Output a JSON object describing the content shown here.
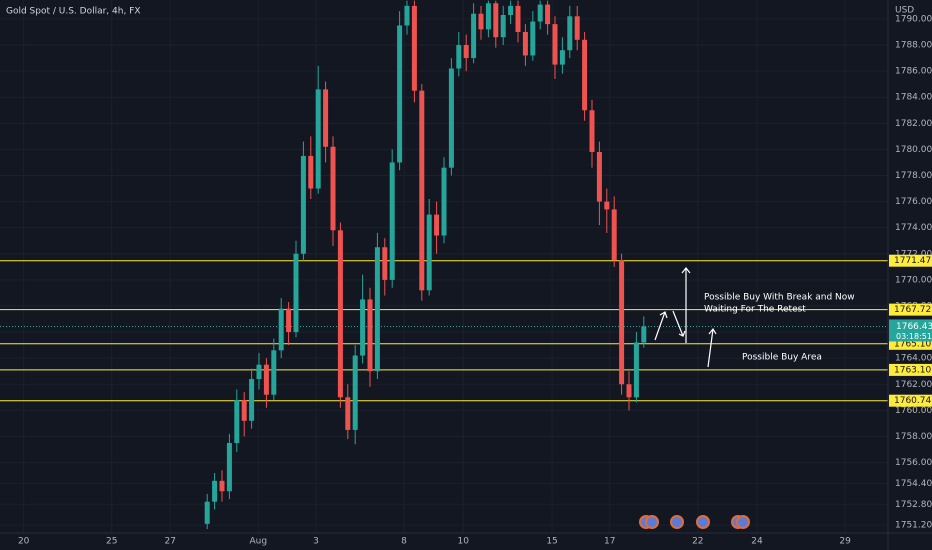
{
  "chart_data": {
    "type": "candlestick",
    "title": "Gold Spot / U.S. Dollar, 4h, FX",
    "currency": "USD",
    "up_color": "#26a69a",
    "down_color": "#ef5350",
    "open": [
      1751.3,
      1753.0,
      1754.6,
      1753.8,
      1757.5,
      1760.8,
      1759.2,
      1762.4,
      1763.5,
      1761.2,
      1764.6,
      1767.8,
      1766.0,
      1772.0,
      1779.5,
      1777.0,
      1784.6,
      1780.2,
      1773.8,
      1761.0,
      1758.5,
      1764.2,
      1768.5,
      1763.0,
      1772.5,
      1770.0,
      1779.0,
      1789.5,
      1791.0,
      1784.5,
      1769.2,
      1775.0,
      1773.4,
      1778.6,
      1786.2,
      1788.0,
      1787.0,
      1790.4,
      1789.2,
      1791.2,
      1788.6,
      1790.3,
      1791.0,
      1789.0,
      1787.2,
      1789.8,
      1791.1,
      1789.6,
      1786.5,
      1787.6,
      1790.2,
      1788.4,
      1783.0,
      1779.8,
      1776.0,
      1775.4,
      1771.5,
      1762.0,
      1761.0,
      1765.2
    ],
    "high": [
      1753.6,
      1755.2,
      1755.4,
      1758.2,
      1761.6,
      1761.4,
      1763.2,
      1764.4,
      1764.0,
      1765.5,
      1768.6,
      1768.3,
      1773.0,
      1780.6,
      1781.0,
      1786.4,
      1785.2,
      1781.0,
      1774.4,
      1762.0,
      1765.0,
      1770.4,
      1769.4,
      1773.6,
      1773.2,
      1780.0,
      1790.6,
      1791.4,
      1791.4,
      1785.0,
      1776.2,
      1776.0,
      1779.4,
      1787.0,
      1789.0,
      1788.8,
      1791.2,
      1791.0,
      1791.4,
      1791.4,
      1791.0,
      1791.4,
      1791.4,
      1789.6,
      1790.6,
      1791.4,
      1791.4,
      1790.2,
      1788.6,
      1791.0,
      1791.0,
      1789.0,
      1783.8,
      1780.6,
      1777.0,
      1776.4,
      1772.0,
      1763.0,
      1766.0,
      1767.2
    ],
    "low": [
      1750.9,
      1752.4,
      1753.0,
      1753.2,
      1756.8,
      1758.0,
      1758.6,
      1761.6,
      1760.2,
      1760.8,
      1764.0,
      1765.0,
      1765.6,
      1771.4,
      1776.2,
      1776.6,
      1779.0,
      1772.6,
      1760.2,
      1757.8,
      1757.4,
      1763.6,
      1761.8,
      1762.4,
      1768.8,
      1769.4,
      1778.4,
      1788.8,
      1783.6,
      1768.4,
      1768.8,
      1772.0,
      1772.8,
      1778.0,
      1785.6,
      1786.0,
      1786.6,
      1788.4,
      1788.6,
      1787.8,
      1788.0,
      1789.6,
      1788.2,
      1786.4,
      1786.8,
      1789.2,
      1788.8,
      1785.4,
      1785.8,
      1787.0,
      1787.6,
      1782.2,
      1778.6,
      1774.2,
      1773.6,
      1771.0,
      1761.2,
      1760.0,
      1760.6,
      1764.8
    ],
    "close": [
      1753.0,
      1754.6,
      1753.8,
      1757.5,
      1760.8,
      1759.2,
      1762.4,
      1763.5,
      1761.2,
      1764.6,
      1767.8,
      1766.0,
      1772.0,
      1779.5,
      1777.0,
      1784.6,
      1780.2,
      1773.8,
      1761.0,
      1758.5,
      1764.2,
      1768.5,
      1763.0,
      1772.5,
      1770.0,
      1779.0,
      1789.5,
      1791.0,
      1784.5,
      1769.2,
      1775.0,
      1773.4,
      1778.6,
      1786.2,
      1788.0,
      1787.0,
      1790.4,
      1789.2,
      1791.2,
      1788.6,
      1790.3,
      1791.0,
      1789.0,
      1787.2,
      1789.8,
      1791.1,
      1789.6,
      1786.5,
      1787.6,
      1790.2,
      1788.4,
      1783.0,
      1779.8,
      1776.0,
      1775.4,
      1771.5,
      1762.0,
      1761.0,
      1765.2,
      1766.43
    ],
    "xlim": [
      -28,
      92
    ],
    "xticks": [
      {
        "value": -24.8,
        "label": "20"
      },
      {
        "value": -12.9,
        "label": "25"
      },
      {
        "value": -5.0,
        "label": "27"
      },
      {
        "value": 6.9,
        "label": "Aug"
      },
      {
        "value": 14.7,
        "label": "3"
      },
      {
        "value": 26.6,
        "label": "8"
      },
      {
        "value": 34.6,
        "label": "10"
      },
      {
        "value": 46.6,
        "label": "15"
      },
      {
        "value": 54.4,
        "label": "17"
      },
      {
        "value": 66.3,
        "label": "22"
      },
      {
        "value": 74.3,
        "label": "24"
      },
      {
        "value": 86.2,
        "label": "29"
      }
    ],
    "ylim": [
      1750.6,
      1791.45
    ],
    "yticks": [
      {
        "value": 1790,
        "label": "1790.00"
      },
      {
        "value": 1788,
        "label": "1788.00"
      },
      {
        "value": 1786,
        "label": "1786.00"
      },
      {
        "value": 1784,
        "label": "1784.00"
      },
      {
        "value": 1782,
        "label": "1782.00"
      },
      {
        "value": 1780,
        "label": "1780.00"
      },
      {
        "value": 1778,
        "label": "1778.00"
      },
      {
        "value": 1776,
        "label": "1776.00"
      },
      {
        "value": 1774,
        "label": "1774.00"
      },
      {
        "value": 1772,
        "label": "1772.00"
      },
      {
        "value": 1770,
        "label": "1770.00"
      },
      {
        "value": 1768,
        "label": "1768.00"
      },
      {
        "value": 1766,
        "label": "1766.00"
      },
      {
        "value": 1764,
        "label": "1764.00"
      },
      {
        "value": 1762,
        "label": "1762.00"
      },
      {
        "value": 1760,
        "label": "1760.00"
      },
      {
        "value": 1758,
        "label": "1758.00"
      },
      {
        "value": 1756,
        "label": "1756.00"
      },
      {
        "value": 1754.4,
        "label": "1754.40"
      },
      {
        "value": 1752.8,
        "label": "1752.80"
      },
      {
        "value": 1751.2,
        "label": "1751.20"
      }
    ],
    "grid": true,
    "levels": {
      "color": "#ffeb3b",
      "values": [
        1771.47,
        1767.72,
        1765.1,
        1763.1,
        1760.74
      ],
      "value_labels": [
        "1771.47",
        "1767.72",
        "1765.10",
        "1763.10",
        "1760.74"
      ]
    },
    "last_price": 1766.43,
    "countdown": "03:18:51",
    "annotations": [
      "Possible Buy With Break and Now",
      "Waiting For The Retest",
      "Possible Buy Area"
    ]
  }
}
